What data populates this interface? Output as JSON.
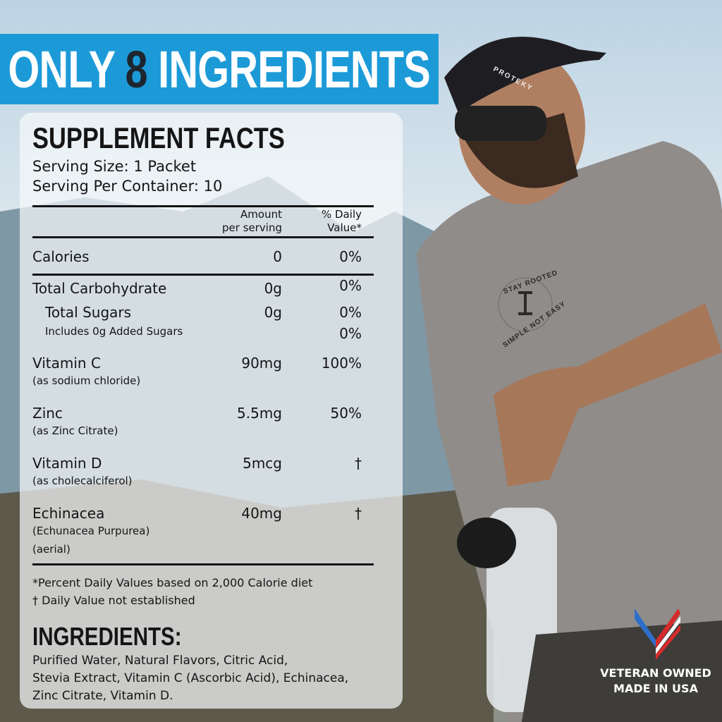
{
  "banner": {
    "prefix": "ONLY ",
    "number": "8",
    "suffix": " INGREDIENTS",
    "color": "#1c9ad8"
  },
  "facts": {
    "title": "SUPPLEMENT FACTS",
    "serving_size": "Serving Size: 1 Packet",
    "servings_per_container": "Serving Per Container: 10",
    "col_amount": [
      "Amount",
      "per serving"
    ],
    "col_dv": [
      "% Daily",
      "Value*"
    ],
    "rows": [
      {
        "name": "Calories",
        "amount": "0",
        "dv": "0%"
      },
      {
        "name": "Total Carbohydrate",
        "amount": "0g",
        "dv": "0%"
      },
      {
        "name": "Total Sugars",
        "amount": "0g",
        "dv": "0%"
      },
      {
        "name": "Includes 0g Added Sugars",
        "amount": "",
        "dv": "0%"
      },
      {
        "name": "Vitamin C",
        "sub": "(as sodium chloride)",
        "amount": "90mg",
        "dv": "100%"
      },
      {
        "name": "Zinc",
        "sub": "(as Zinc Citrate)",
        "amount": "5.5mg",
        "dv": "50%"
      },
      {
        "name": "Vitamin D",
        "sub": "(as cholecalciferol)",
        "amount": "5mcg",
        "dv": "†"
      },
      {
        "name": "Echinacea",
        "sub": "(Echunacea Purpurea)",
        "sub2": "(aerial)",
        "amount": "40mg",
        "dv": "†"
      }
    ],
    "footnote1": "*Percent Daily Values based on 2,000 Calorie diet",
    "footnote2": "† Daily Value not established"
  },
  "ingredients": {
    "title": "INGREDIENTS:",
    "lines": [
      "Purified Water, Natural Flavors, Citric Acid,",
      "Stevia Extract, Vitamin C (Ascorbic Acid), Echinacea,",
      "Zinc Citrate, Vitamin D."
    ]
  },
  "badge": {
    "line1": "VETERAN OWNED",
    "line2": "MADE IN USA",
    "icon": "american-flag-chevron-icon"
  },
  "photo": {
    "cap_text": "PROTEKY",
    "shirt_text": [
      "STAY ROOTED",
      "SIMPLE NOT EASY"
    ]
  }
}
